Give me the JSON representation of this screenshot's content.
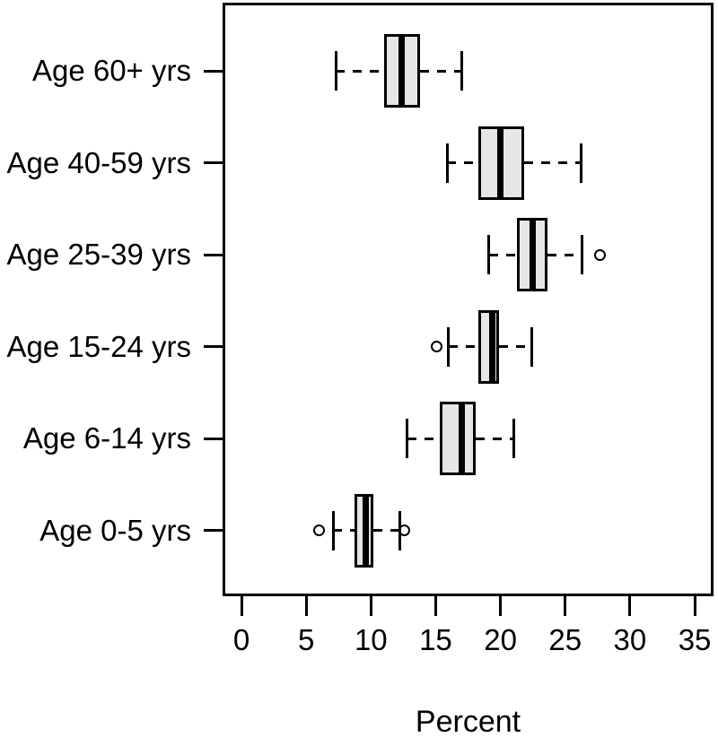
{
  "chart_data": {
    "type": "boxplot",
    "orientation": "horizontal",
    "title": "",
    "xlabel": "Percent",
    "ylabel": "",
    "xlim": [
      0,
      35
    ],
    "x_ticks": [
      0,
      5,
      10,
      15,
      20,
      25,
      30,
      35
    ],
    "grid": false,
    "legend": "none",
    "categories": [
      "Age 60+ yrs",
      "Age 40-59 yrs",
      "Age 25-39 yrs",
      "Age 15-24 yrs",
      "Age 6-14 yrs",
      "Age 0-5 yrs"
    ],
    "boxes": [
      {
        "label": "Age 60+ yrs",
        "whisker_low": 7.3,
        "q1": 11.0,
        "median": 12.4,
        "q3": 13.8,
        "whisker_high": 17.0,
        "outliers": []
      },
      {
        "label": "Age 40-59 yrs",
        "whisker_low": 15.9,
        "q1": 18.3,
        "median": 20.0,
        "q3": 21.8,
        "whisker_high": 26.2,
        "outliers": []
      },
      {
        "label": "Age 25-39 yrs",
        "whisker_low": 19.1,
        "q1": 21.3,
        "median": 22.5,
        "q3": 23.6,
        "whisker_high": 26.3,
        "outliers": [
          27.7
        ]
      },
      {
        "label": "Age 15-24 yrs",
        "whisker_low": 16.0,
        "q1": 18.3,
        "median": 19.4,
        "q3": 19.9,
        "whisker_high": 22.4,
        "outliers": [
          15.1
        ]
      },
      {
        "label": "Age 6-14 yrs",
        "whisker_low": 12.8,
        "q1": 15.3,
        "median": 17.0,
        "q3": 18.1,
        "whisker_high": 21.0,
        "outliers": []
      },
      {
        "label": "Age 0-5 yrs",
        "whisker_low": 7.1,
        "q1": 8.7,
        "median": 9.6,
        "q3": 10.2,
        "whisker_high": 12.2,
        "outliers": [
          6.0,
          12.6
        ]
      }
    ],
    "colors": {
      "box_fill": "#e6e6e6",
      "line": "#000000",
      "background": "#ffffff"
    }
  }
}
